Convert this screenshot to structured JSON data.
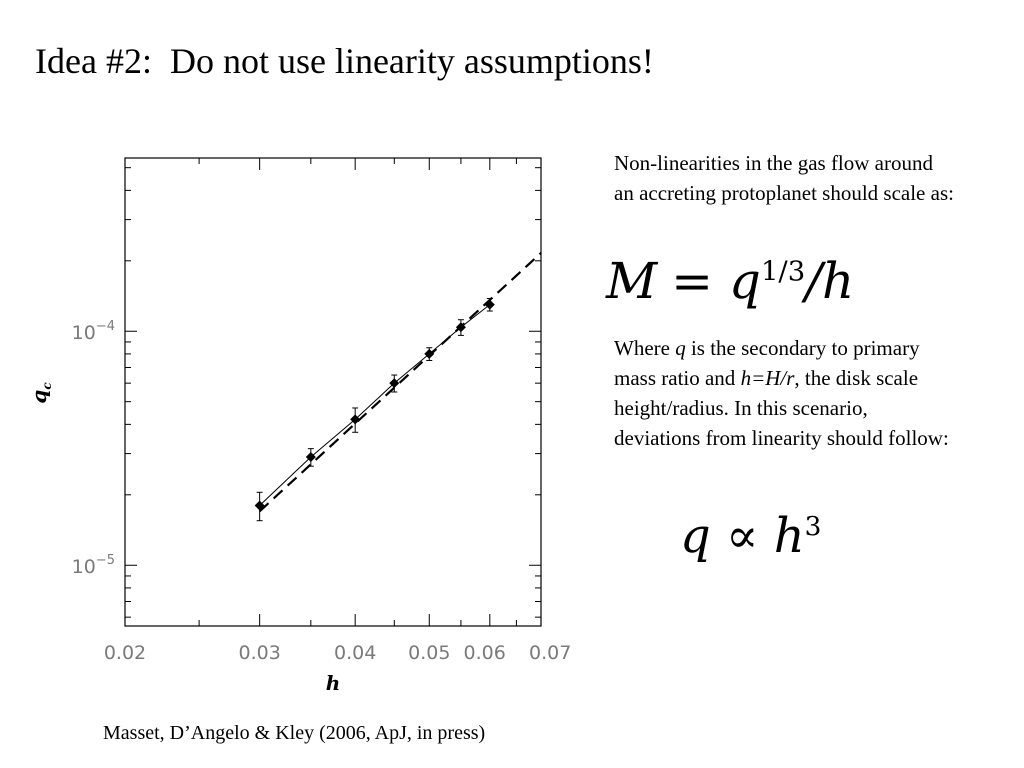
{
  "slide": {
    "title": "Idea #2:  Do not use linearity assumptions!",
    "description_1": "Non-linearities in the gas flow around an accreting protoplanet should scale as:",
    "description_2": {
      "part1": "Where ",
      "q": "q",
      "part2": " is the secondary to primary mass ratio and ",
      "h_def": "h=H/r",
      "part3": ", the disk scale height/radius. In this scenario, deviations from linearity should follow:"
    },
    "equation_1": {
      "lhs": "M",
      "equals": "=",
      "base": "q",
      "exponent": "1/3",
      "divisor": "/h"
    },
    "equation_2": {
      "lhs": "q",
      "relation": "∝",
      "base": "h",
      "exponent": "3"
    },
    "citation": "Masset, D’Angelo & Kley (2006, ApJ, in press)"
  },
  "chart_data": {
    "type": "scatter",
    "xlabel": "h",
    "ylabel": "q",
    "ylabel_subscript": "c",
    "x_scale": "log",
    "y_scale": "log",
    "xlim": [
      0.02,
      0.07
    ],
    "ylim": [
      5.5e-06,
      0.00055
    ],
    "x_tick_labels": [
      {
        "value": 0.02,
        "label": "0.02"
      },
      {
        "value": 0.03,
        "label": "0.03"
      },
      {
        "value": 0.04,
        "label": "0.04"
      },
      {
        "value": 0.05,
        "label": "0.05"
      },
      {
        "value": 0.06,
        "label": "0.06"
      },
      {
        "value": 0.07,
        "label": "0.07"
      }
    ],
    "y_tick_labels": [
      {
        "value": 0.0001,
        "mantissa": "10",
        "exponent": "−4"
      },
      {
        "value": 1e-05,
        "mantissa": "10",
        "exponent": "−5"
      }
    ],
    "grid": false,
    "series": [
      {
        "style": "solid line with diamond markers and error bars",
        "color": "#000000",
        "x": [
          0.03,
          0.035,
          0.04,
          0.045,
          0.05,
          0.055,
          0.06
        ],
        "y": [
          1.8e-05,
          2.9e-05,
          4.2e-05,
          6e-05,
          8e-05,
          0.000104,
          0.00013
        ],
        "y_err_low": [
          2.5e-06,
          2.5e-06,
          5e-06,
          5e-06,
          5e-06,
          8e-06,
          8e-06
        ],
        "y_err_high": [
          2.5e-06,
          2.5e-06,
          5e-06,
          5e-06,
          5e-06,
          8e-06,
          8e-06
        ]
      },
      {
        "style": "dashed power-law fit, q proportional to h^3",
        "color": "#000000",
        "x": [
          0.03,
          0.07
        ],
        "y": [
          1.7e-05,
          0.000216
        ]
      }
    ]
  }
}
